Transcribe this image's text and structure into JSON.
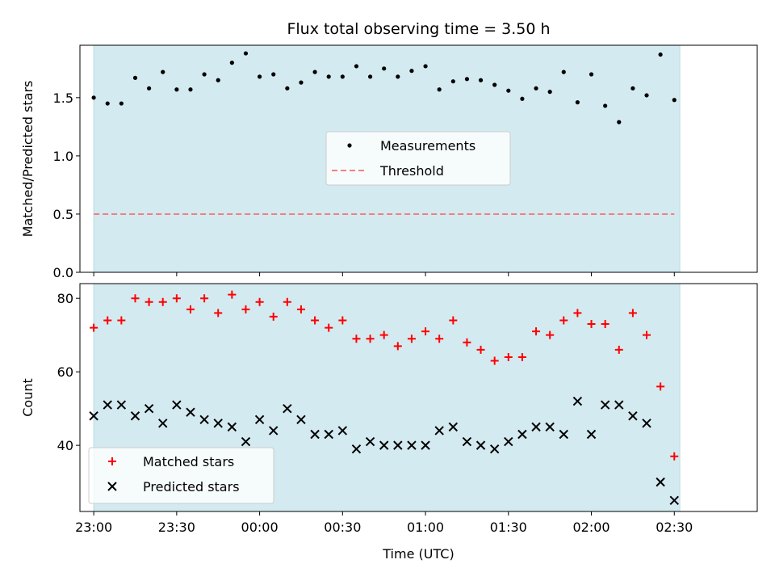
{
  "chart_data": [
    {
      "type": "scatter",
      "title": "Flux total observing time = 3.50 h",
      "xlabel": "",
      "ylabel": "Matched/Predicted stars",
      "x_axis_type": "time",
      "xlim": [
        "22:55",
        "03:00"
      ],
      "ylim": [
        0,
        1.95
      ],
      "yticks": [
        "0.0",
        "0.5",
        "1.0",
        "1.5"
      ],
      "shaded_region": {
        "start": "23:00",
        "end": "02:32",
        "color": "#d3eaf0"
      },
      "legend_position": "center",
      "series": [
        {
          "name": "Measurements",
          "marker": "dot",
          "color": "#000000",
          "x": [
            "23:00",
            "23:05",
            "23:10",
            "23:15",
            "23:20",
            "23:25",
            "23:30",
            "23:35",
            "23:40",
            "23:45",
            "23:50",
            "23:55",
            "00:00",
            "00:05",
            "00:10",
            "00:15",
            "00:20",
            "00:25",
            "00:30",
            "00:35",
            "00:40",
            "00:45",
            "00:50",
            "00:55",
            "01:00",
            "01:05",
            "01:10",
            "01:15",
            "01:20",
            "01:25",
            "01:30",
            "01:35",
            "01:40",
            "01:45",
            "01:50",
            "01:55",
            "02:00",
            "02:05",
            "02:10",
            "02:15",
            "02:20",
            "02:25",
            "02:30"
          ],
          "y": [
            1.5,
            1.45,
            1.45,
            1.67,
            1.58,
            1.72,
            1.57,
            1.57,
            1.7,
            1.65,
            1.8,
            1.88,
            1.68,
            1.7,
            1.58,
            1.63,
            1.72,
            1.68,
            1.68,
            1.77,
            1.68,
            1.75,
            1.68,
            1.73,
            1.77,
            1.57,
            1.64,
            1.66,
            1.65,
            1.61,
            1.56,
            1.49,
            1.58,
            1.55,
            1.72,
            1.46,
            1.7,
            1.43,
            1.29,
            1.58,
            1.52,
            1.87,
            1.48
          ]
        },
        {
          "name": "Threshold",
          "marker": "dashed-line",
          "color": "#f08080",
          "x": [
            "23:00",
            "02:30"
          ],
          "y": [
            0.5,
            0.5
          ]
        }
      ]
    },
    {
      "type": "scatter",
      "title": "",
      "xlabel": "Time (UTC)",
      "ylabel": "Count",
      "x_axis_type": "time",
      "xlim": [
        "22:55",
        "03:00"
      ],
      "ylim": [
        22,
        84
      ],
      "yticks": [
        "40",
        "60",
        "80"
      ],
      "xticks": [
        "23:00",
        "23:30",
        "00:00",
        "00:30",
        "01:00",
        "01:30",
        "02:00",
        "02:30"
      ],
      "shaded_region": {
        "start": "23:00",
        "end": "02:32",
        "color": "#d3eaf0"
      },
      "legend_position": "lower-left",
      "series": [
        {
          "name": "Matched stars",
          "marker": "plus",
          "color": "#ff0000",
          "x": [
            "23:00",
            "23:05",
            "23:10",
            "23:15",
            "23:20",
            "23:25",
            "23:30",
            "23:35",
            "23:40",
            "23:45",
            "23:50",
            "23:55",
            "00:00",
            "00:05",
            "00:10",
            "00:15",
            "00:20",
            "00:25",
            "00:30",
            "00:35",
            "00:40",
            "00:45",
            "00:50",
            "00:55",
            "01:00",
            "01:05",
            "01:10",
            "01:15",
            "01:20",
            "01:25",
            "01:30",
            "01:35",
            "01:40",
            "01:45",
            "01:50",
            "01:55",
            "02:00",
            "02:05",
            "02:10",
            "02:15",
            "02:20",
            "02:25",
            "02:30"
          ],
          "y": [
            72,
            74,
            74,
            80,
            79,
            79,
            80,
            77,
            80,
            76,
            81,
            77,
            79,
            75,
            79,
            77,
            74,
            72,
            74,
            69,
            69,
            70,
            67,
            69,
            71,
            69,
            74,
            68,
            66,
            63,
            64,
            64,
            71,
            70,
            74,
            76,
            73,
            73,
            66,
            76,
            70,
            56,
            37
          ]
        },
        {
          "name": "Predicted stars",
          "marker": "x",
          "color": "#000000",
          "x": [
            "23:00",
            "23:05",
            "23:10",
            "23:15",
            "23:20",
            "23:25",
            "23:30",
            "23:35",
            "23:40",
            "23:45",
            "23:50",
            "23:55",
            "00:00",
            "00:05",
            "00:10",
            "00:15",
            "00:20",
            "00:25",
            "00:30",
            "00:35",
            "00:40",
            "00:45",
            "00:50",
            "00:55",
            "01:00",
            "01:05",
            "01:10",
            "01:15",
            "01:20",
            "01:25",
            "01:30",
            "01:35",
            "01:40",
            "01:45",
            "01:50",
            "01:55",
            "02:00",
            "02:05",
            "02:10",
            "02:15",
            "02:20",
            "02:25",
            "02:30"
          ],
          "y": [
            48,
            51,
            51,
            48,
            50,
            46,
            51,
            49,
            47,
            46,
            45,
            41,
            47,
            44,
            50,
            47,
            43,
            43,
            44,
            39,
            41,
            40,
            40,
            40,
            40,
            44,
            45,
            41,
            40,
            39,
            41,
            43,
            45,
            45,
            43,
            52,
            43,
            51,
            51,
            48,
            46,
            30,
            25
          ]
        }
      ]
    }
  ]
}
